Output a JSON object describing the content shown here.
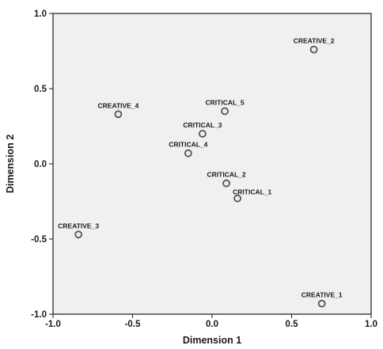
{
  "chart_data": {
    "type": "scatter",
    "title": "",
    "xlabel": "Dimension 1",
    "ylabel": "Dimension 2",
    "xlim": [
      -1.0,
      1.0
    ],
    "ylim": [
      -1.0,
      1.0
    ],
    "xticks": [
      -1.0,
      -0.5,
      0.0,
      0.5,
      1.0
    ],
    "yticks": [
      -1.0,
      -0.5,
      0.0,
      0.5,
      1.0
    ],
    "xtick_labels": [
      "-1.0",
      "-0.5",
      "0.0",
      "0.5",
      "1.0"
    ],
    "ytick_labels": [
      "-1.0",
      "-0.5",
      "0.0",
      "0.5",
      "1.0"
    ],
    "grid": false,
    "legend": "none",
    "colors": {
      "plot_background": "#f0f0f0",
      "marker_edge": "#555555"
    },
    "points": [
      {
        "label": "CREATIVE_2",
        "x": 0.64,
        "y": 0.76
      },
      {
        "label": "CREATIVE_4",
        "x": -0.59,
        "y": 0.33
      },
      {
        "label": "CRITICAL_5",
        "x": 0.08,
        "y": 0.35
      },
      {
        "label": "CRITICAL_3",
        "x": -0.06,
        "y": 0.2
      },
      {
        "label": "CRITICAL_4",
        "x": -0.15,
        "y": 0.07
      },
      {
        "label": "CRITICAL_2",
        "x": 0.09,
        "y": -0.13
      },
      {
        "label": "CRITICAL_1",
        "x": 0.16,
        "y": -0.23
      },
      {
        "label": "CREATIVE_3",
        "x": -0.84,
        "y": -0.47
      },
      {
        "label": "CREATIVE_1",
        "x": 0.69,
        "y": -0.93
      }
    ]
  }
}
